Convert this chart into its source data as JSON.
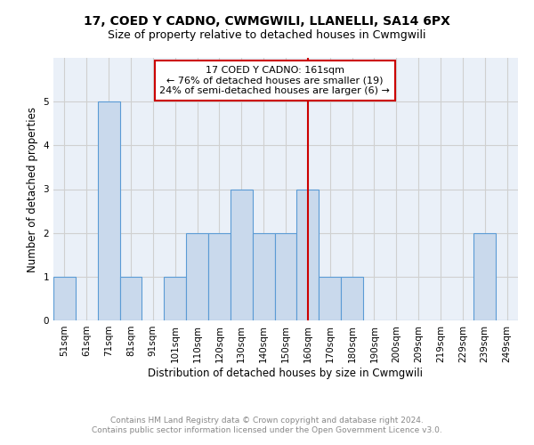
{
  "title": "17, COED Y CADNO, CWMGWILI, LLANELLI, SA14 6PX",
  "subtitle": "Size of property relative to detached houses in Cwmgwili",
  "xlabel": "Distribution of detached houses by size in Cwmgwili",
  "ylabel": "Number of detached properties",
  "bin_labels": [
    "51sqm",
    "61sqm",
    "71sqm",
    "81sqm",
    "91sqm",
    "101sqm",
    "110sqm",
    "120sqm",
    "130sqm",
    "140sqm",
    "150sqm",
    "160sqm",
    "170sqm",
    "180sqm",
    "190sqm",
    "200sqm",
    "209sqm",
    "219sqm",
    "229sqm",
    "239sqm",
    "249sqm"
  ],
  "bar_heights": [
    1,
    0,
    5,
    1,
    0,
    1,
    2,
    2,
    3,
    2,
    2,
    3,
    1,
    1,
    0,
    0,
    0,
    0,
    0,
    2,
    0
  ],
  "bar_color": "#c9d9ec",
  "bar_edgecolor": "#5b9bd5",
  "grid_color": "#d0d0d0",
  "bg_color": "#eaf0f8",
  "annotation_line1": "17 COED Y CADNO: 161sqm",
  "annotation_line2": "← 76% of detached houses are smaller (19)",
  "annotation_line3": "24% of semi-detached houses are larger (6) →",
  "annotation_box_color": "#cc0000",
  "vline_x_index": 11,
  "vline_color": "#cc0000",
  "ylim": [
    0,
    6
  ],
  "yticks": [
    0,
    1,
    2,
    3,
    4,
    5,
    6
  ],
  "footer_text": "Contains HM Land Registry data © Crown copyright and database right 2024.\nContains public sector information licensed under the Open Government Licence v3.0.",
  "footer_color": "#888888",
  "title_fontsize": 10,
  "subtitle_fontsize": 9,
  "xlabel_fontsize": 8.5,
  "ylabel_fontsize": 8.5,
  "tick_fontsize": 7.5,
  "annotation_fontsize": 8,
  "footer_fontsize": 6.5
}
